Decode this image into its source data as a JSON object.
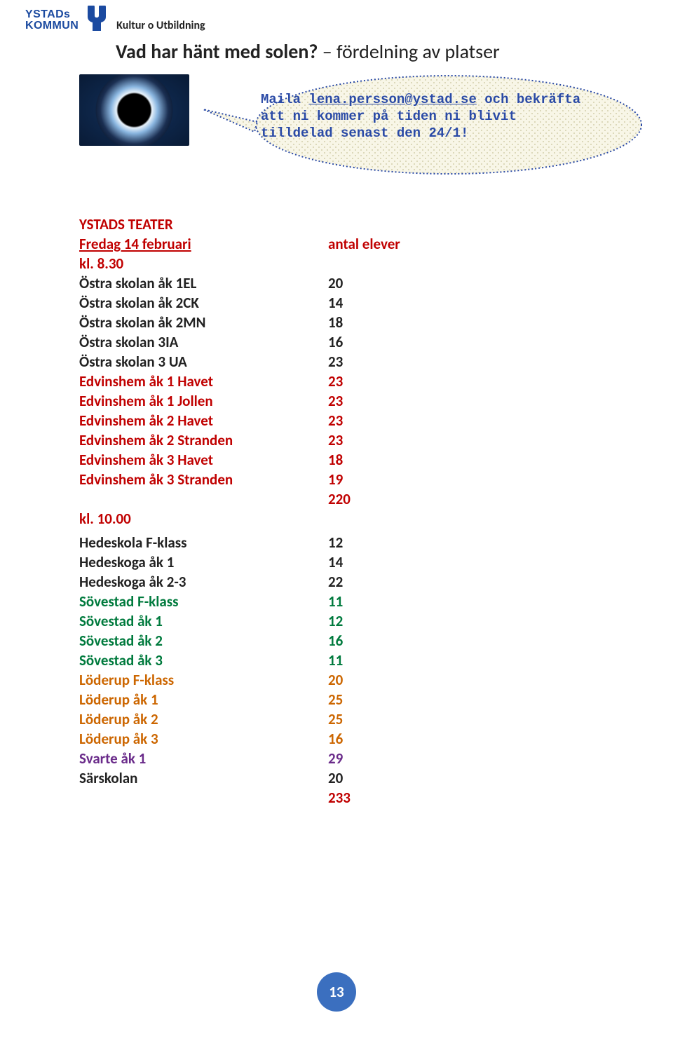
{
  "logo": {
    "line1": "YSTADs",
    "line2": "KOMMUN",
    "right": "Kultur o Utbildning",
    "mark_color": "#1b4aa0",
    "mark_arm_color": "#1b4aa0"
  },
  "title": {
    "main": "Vad har hänt med solen?",
    "sub": " – fördelning av platser"
  },
  "speech": {
    "line1_pre": "Maila ",
    "email": "lena.persson@ystad.se",
    "line1_post": " och bekräfta",
    "line2": "att ni kommer på tiden ni blivit",
    "line3": "tilldelad senast den 24/1!"
  },
  "eclipse": {
    "bg": "#06142a",
    "halo1": "#6ea4d8",
    "halo2": "#cfe2f4",
    "center": "#000000"
  },
  "theater": {
    "heading": "YSTADS TEATER",
    "day_line": "Fredag 14 februari",
    "antal_label": "antal elever",
    "time1": "kl. 8.30",
    "session1": [
      {
        "label": "Östra skolan åk 1EL",
        "value": "20",
        "color": "c-black"
      },
      {
        "label": "Östra skolan åk 2CK",
        "value": "14",
        "color": "c-black"
      },
      {
        "label": "Östra skolan åk 2MN",
        "value": "18",
        "color": "c-black"
      },
      {
        "label": "Östra skolan 3IA",
        "value": "16",
        "color": "c-black"
      },
      {
        "label": "Östra skolan 3 UA",
        "value": "23",
        "color": "c-black"
      },
      {
        "label": "Edvinshem åk 1 Havet",
        "value": "23",
        "color": "c-red"
      },
      {
        "label": "Edvinshem åk 1 Jollen",
        "value": "23",
        "color": "c-red"
      },
      {
        "label": "Edvinshem åk 2 Havet",
        "value": "23",
        "color": "c-red"
      },
      {
        "label": "Edvinshem åk 2 Stranden",
        "value": "23",
        "color": "c-red"
      },
      {
        "label": "Edvinshem åk 3 Havet",
        "value": "18",
        "color": "c-red"
      },
      {
        "label": "Edvinshem åk 3 Stranden",
        "value": "19",
        "color": "c-red"
      }
    ],
    "session1_total": "220",
    "time2": "kl. 10.00",
    "session2": [
      {
        "label": "Hedeskola F-klass",
        "value": "12",
        "color": "c-black"
      },
      {
        "label": "Hedeskoga åk 1",
        "value": "14",
        "color": "c-black"
      },
      {
        "label": "Hedeskoga åk 2-3",
        "value": "22",
        "color": "c-black"
      },
      {
        "label": "Sövestad F-klass",
        "value": "11",
        "color": "c-green"
      },
      {
        "label": "Sövestad åk 1",
        "value": "12",
        "color": "c-green"
      },
      {
        "label": "Sövestad åk 2",
        "value": "16",
        "color": "c-green"
      },
      {
        "label": "Sövestad åk 3",
        "value": "11",
        "color": "c-green"
      },
      {
        "label": "Löderup F-klass",
        "value": "20",
        "color": "c-orange"
      },
      {
        "label": "Löderup åk 1",
        "value": "25",
        "color": "c-orange"
      },
      {
        "label": "Löderup åk 2",
        "value": "25",
        "color": "c-orange"
      },
      {
        "label": "Löderup åk 3",
        "value": "16",
        "color": "c-orange"
      },
      {
        "label": "Svarte åk 1",
        "value": "29",
        "color": "c-purple"
      },
      {
        "label": "Särskolan",
        "value": "20",
        "color": "c-black"
      }
    ],
    "session2_total": "233"
  },
  "page_number": "13",
  "colors": {
    "speech_fill": "#f8f6e7",
    "speech_stroke": "#2a4aa6"
  }
}
